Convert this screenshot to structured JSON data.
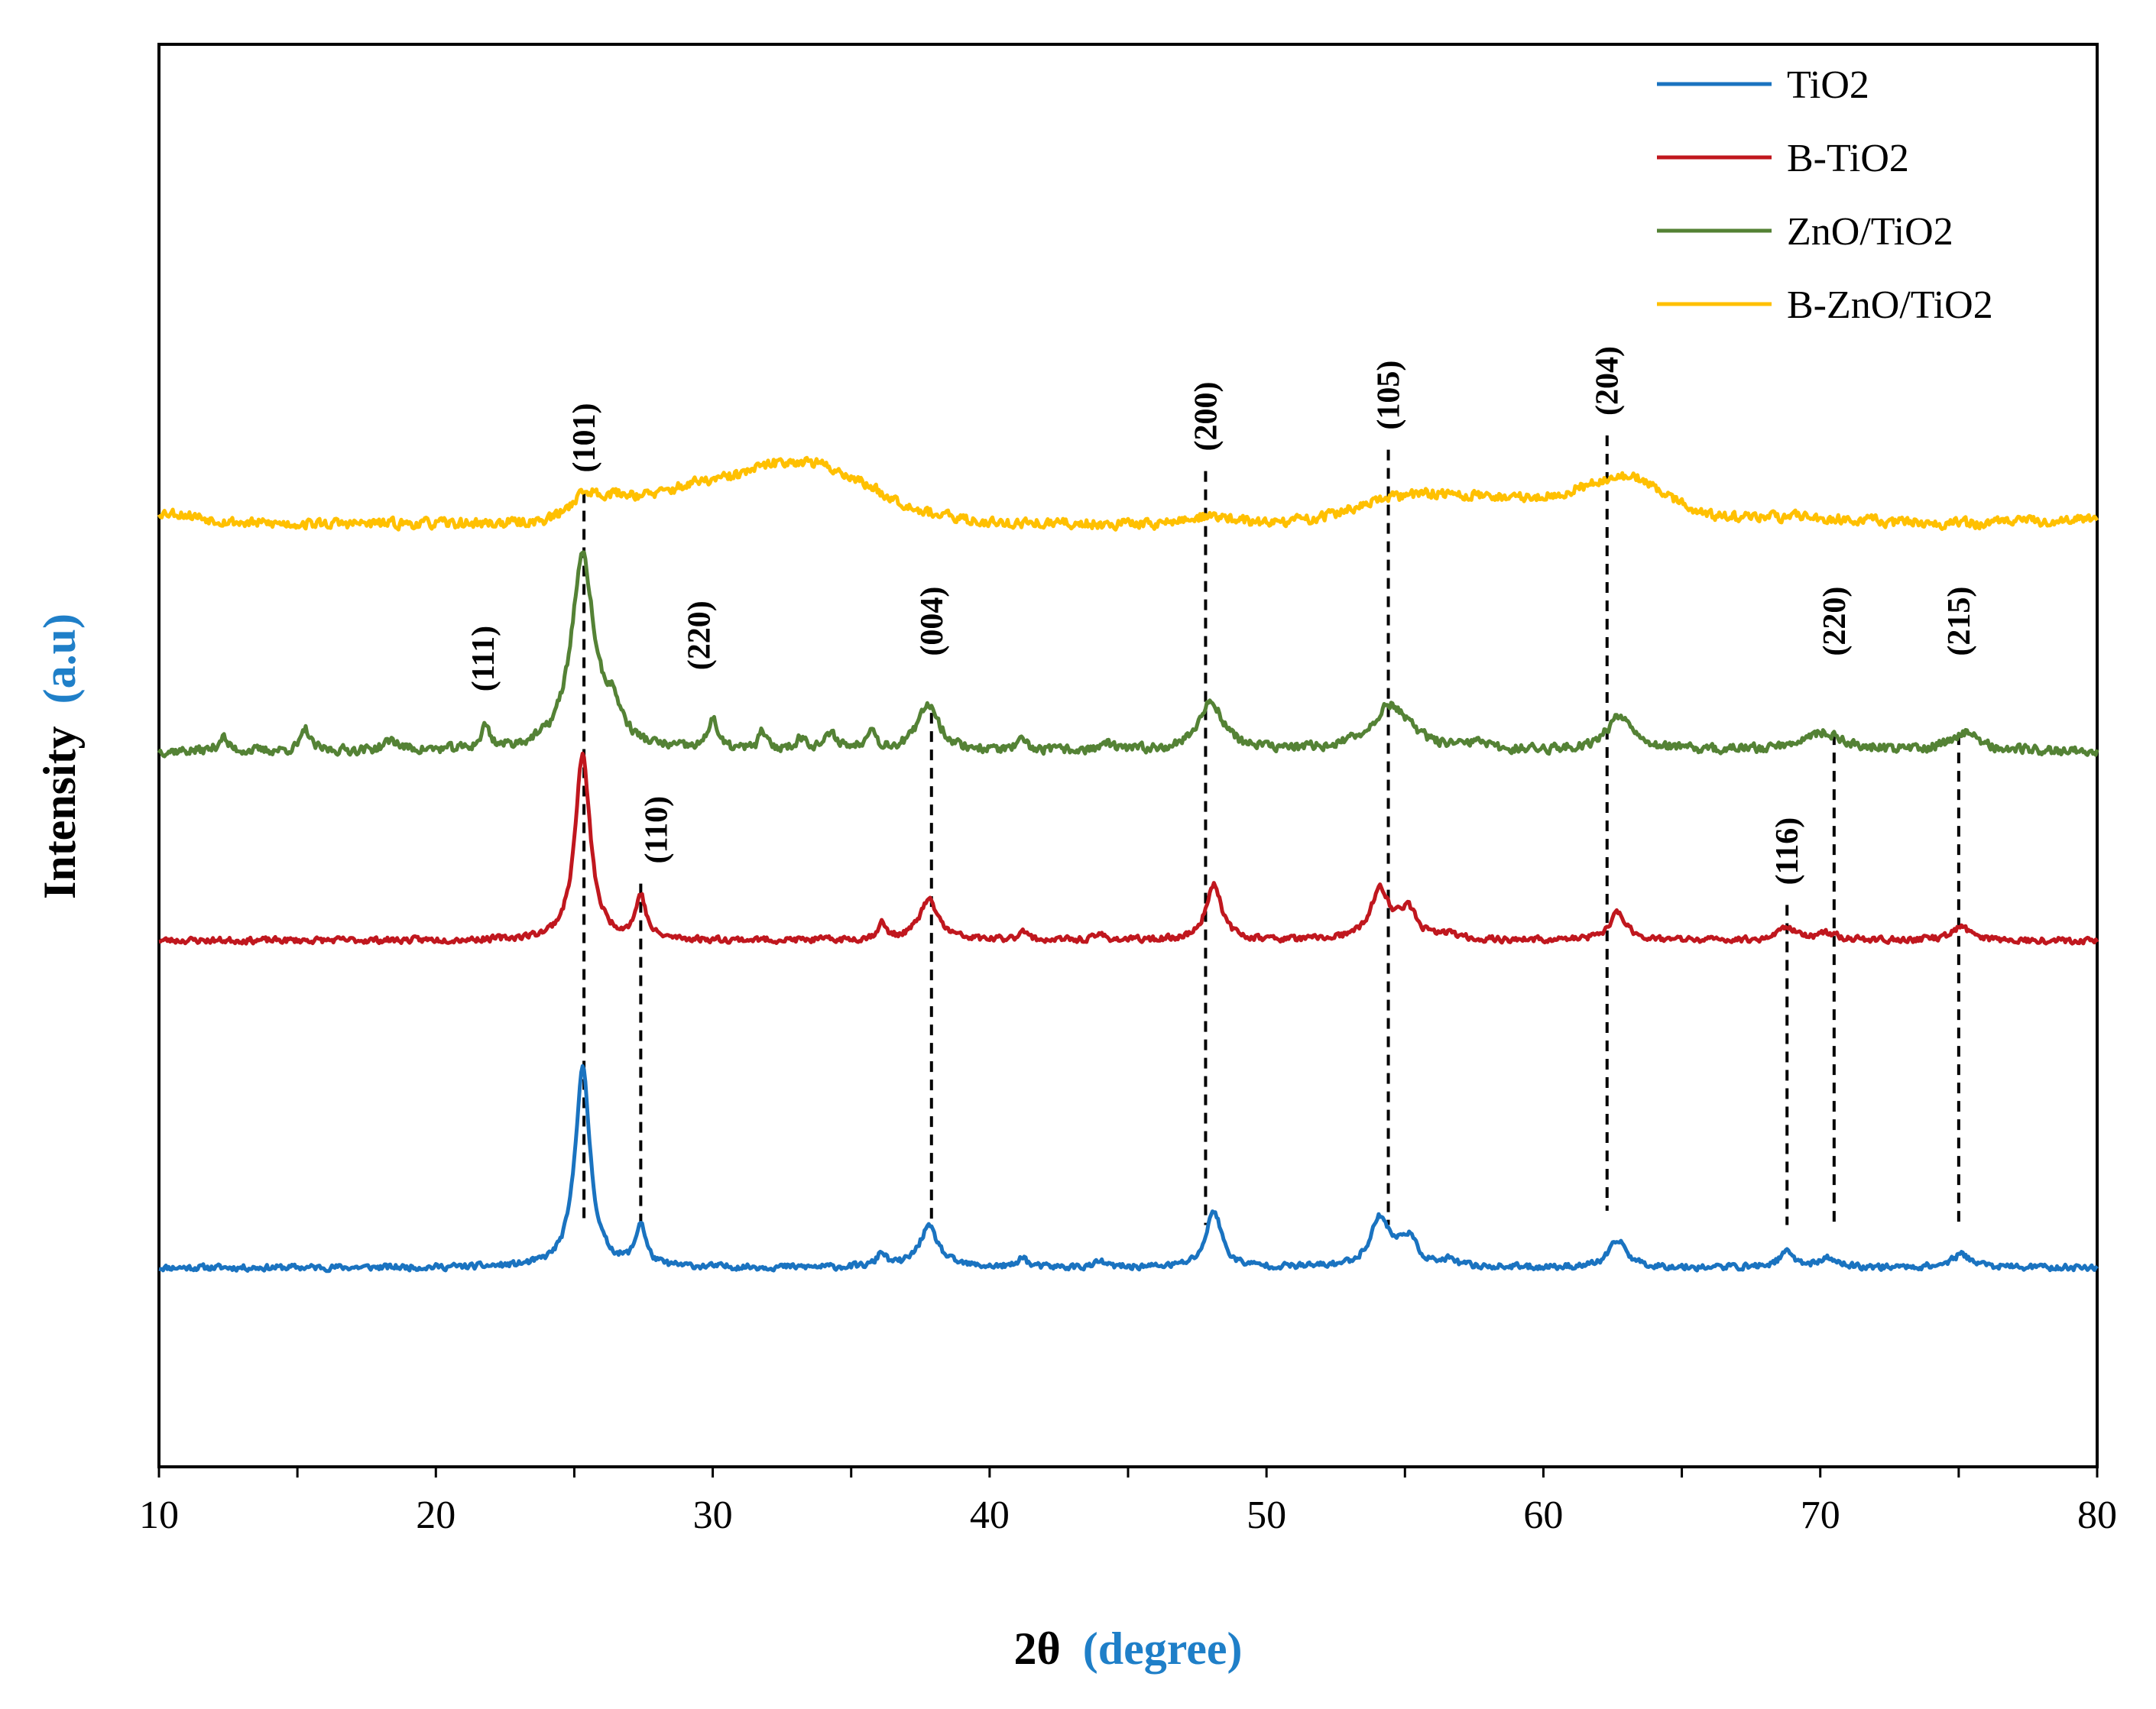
{
  "chart_data": {
    "type": "line",
    "xlabel_main": "2θ",
    "xlabel_unit": "(degree)",
    "ylabel_main": "Intensity",
    "ylabel_unit": "(a.u)",
    "xlim": [
      10,
      80
    ],
    "ylim": [
      0,
      100
    ],
    "xticks": [
      10,
      20,
      30,
      40,
      50,
      60,
      70,
      80
    ],
    "xtick_labels": [
      "10",
      "20",
      "30",
      "40",
      "50",
      "60",
      "70",
      "80"
    ],
    "label_color": "#1f7fc8",
    "legend_position": "top-right",
    "series": [
      {
        "name": "TiO2",
        "color": "#1a73c0",
        "baseline": 14,
        "noise": 0.3,
        "seed": 11,
        "bumps": [],
        "peaks": [
          {
            "x": 25.3,
            "h": 14.0,
            "w": 0.33
          },
          {
            "x": 27.4,
            "h": 2.9,
            "w": 0.22
          },
          {
            "x": 36.1,
            "h": 1.0,
            "w": 0.18
          },
          {
            "x": 37.8,
            "h": 2.8,
            "w": 0.42
          },
          {
            "x": 41.2,
            "h": 0.8,
            "w": 0.15
          },
          {
            "x": 44.0,
            "h": 0.4,
            "w": 0.2
          },
          {
            "x": 48.1,
            "h": 4.0,
            "w": 0.33
          },
          {
            "x": 54.1,
            "h": 3.4,
            "w": 0.42
          },
          {
            "x": 55.1,
            "h": 2.0,
            "w": 0.4
          },
          {
            "x": 56.6,
            "h": 0.4,
            "w": 0.3
          },
          {
            "x": 62.7,
            "h": 1.9,
            "w": 0.38
          },
          {
            "x": 68.8,
            "h": 1.0,
            "w": 0.35
          },
          {
            "x": 70.3,
            "h": 0.6,
            "w": 0.4
          },
          {
            "x": 75.1,
            "h": 0.9,
            "w": 0.45
          }
        ]
      },
      {
        "name": "B-TiO2",
        "color": "#c0171e",
        "baseline": 37,
        "noise": 0.3,
        "seed": 23,
        "bumps": [],
        "peaks": [
          {
            "x": 25.3,
            "h": 13.0,
            "w": 0.33
          },
          {
            "x": 27.4,
            "h": 3.0,
            "w": 0.22
          },
          {
            "x": 36.1,
            "h": 1.1,
            "w": 0.18
          },
          {
            "x": 37.8,
            "h": 2.8,
            "w": 0.42
          },
          {
            "x": 41.2,
            "h": 0.8,
            "w": 0.15
          },
          {
            "x": 44.0,
            "h": 0.4,
            "w": 0.2
          },
          {
            "x": 48.1,
            "h": 4.0,
            "w": 0.33
          },
          {
            "x": 54.1,
            "h": 3.4,
            "w": 0.42
          },
          {
            "x": 55.1,
            "h": 2.0,
            "w": 0.4
          },
          {
            "x": 56.6,
            "h": 0.4,
            "w": 0.3
          },
          {
            "x": 62.7,
            "h": 1.9,
            "w": 0.38
          },
          {
            "x": 68.8,
            "h": 1.0,
            "w": 0.35
          },
          {
            "x": 70.3,
            "h": 0.5,
            "w": 0.4
          },
          {
            "x": 75.1,
            "h": 0.9,
            "w": 0.45
          }
        ]
      },
      {
        "name": "ZnO/TiO2",
        "color": "#548235",
        "baseline": 50.3,
        "noise": 0.45,
        "seed": 37,
        "bumps": [],
        "peaks": [
          {
            "x": 12.3,
            "h": 1.0,
            "w": 0.18
          },
          {
            "x": 15.3,
            "h": 1.5,
            "w": 0.18
          },
          {
            "x": 18.4,
            "h": 0.7,
            "w": 0.3
          },
          {
            "x": 21.8,
            "h": 1.6,
            "w": 0.18
          },
          {
            "x": 25.3,
            "h": 13.5,
            "w": 0.5
          },
          {
            "x": 26.4,
            "h": 2.2,
            "w": 0.4
          },
          {
            "x": 30.0,
            "h": 2.3,
            "w": 0.18
          },
          {
            "x": 31.8,
            "h": 1.3,
            "w": 0.15
          },
          {
            "x": 33.2,
            "h": 0.8,
            "w": 0.25
          },
          {
            "x": 34.3,
            "h": 1.0,
            "w": 0.3
          },
          {
            "x": 35.7,
            "h": 1.5,
            "w": 0.2
          },
          {
            "x": 37.8,
            "h": 3.3,
            "w": 0.45
          },
          {
            "x": 41.2,
            "h": 0.6,
            "w": 0.2
          },
          {
            "x": 44.2,
            "h": 0.5,
            "w": 0.2
          },
          {
            "x": 48.0,
            "h": 3.4,
            "w": 0.55
          },
          {
            "x": 54.5,
            "h": 3.2,
            "w": 0.85
          },
          {
            "x": 57.6,
            "h": 0.5,
            "w": 0.3
          },
          {
            "x": 62.8,
            "h": 2.5,
            "w": 0.6
          },
          {
            "x": 70.0,
            "h": 1.3,
            "w": 0.9
          },
          {
            "x": 75.2,
            "h": 1.3,
            "w": 0.6
          }
        ]
      },
      {
        "name": "B-ZnO/TiO2",
        "color": "#ffc000",
        "baseline": 66.3,
        "noise": 0.5,
        "seed": 53,
        "bumps": [
          {
            "x": 10.0,
            "h": 0.8,
            "w": 2.0
          },
          {
            "x": 33.0,
            "h": 4.4,
            "w": 3.7
          },
          {
            "x": 29.0,
            "h": 1.2,
            "w": 1.5
          },
          {
            "x": 26.5,
            "h": 1.6,
            "w": 1.5
          },
          {
            "x": 48.0,
            "h": 0.5,
            "w": 1.2
          },
          {
            "x": 55.5,
            "h": 2.0,
            "w": 3.0
          },
          {
            "x": 59.5,
            "h": 1.3,
            "w": 2.5
          },
          {
            "x": 63.0,
            "h": 3.1,
            "w": 2.2
          },
          {
            "x": 69.0,
            "h": 0.5,
            "w": 3.0
          },
          {
            "x": 80.0,
            "h": 0.3,
            "w": 3.0
          }
        ],
        "peaks": [
          {
            "x": 25.3,
            "h": 1.3,
            "w": 0.6
          }
        ]
      }
    ],
    "annotations": [
      {
        "label": "(101)",
        "x": 25.35,
        "y_top": 68.5,
        "y_bottom": 17.0,
        "label_offset": 0
      },
      {
        "label": "(110)",
        "x": 27.4,
        "y_top": 41.0,
        "y_bottom": 17.0,
        "label_offset": 20
      },
      {
        "label": "(111)",
        "x": 21.7,
        "y_top": null,
        "y_bottom": null,
        "label_y": 54.5,
        "label_offset": 0
      },
      {
        "label": "(220)",
        "x": 29.5,
        "y_top": null,
        "y_bottom": null,
        "label_y": 56.0,
        "label_offset": 0
      },
      {
        "label": "(004)",
        "x": 37.9,
        "y_top": 53.0,
        "y_bottom": 17.0,
        "label_y": 57.0,
        "label_offset": 0
      },
      {
        "label": "(200)",
        "x": 47.8,
        "y_top": 70.0,
        "y_bottom": 17.0,
        "label_offset": 0
      },
      {
        "label": "(105)",
        "x": 54.4,
        "y_top": 71.5,
        "y_bottom": 17.0,
        "label_offset": 0
      },
      {
        "label": "(204)",
        "x": 62.3,
        "y_top": 72.5,
        "y_bottom": 18.0,
        "label_offset": 0
      },
      {
        "label": "(116)",
        "x": 68.8,
        "y_top": 39.5,
        "y_bottom": 17.0,
        "label_offset": 0
      },
      {
        "label": "(220)",
        "x": 70.5,
        "y_top": 51.5,
        "y_bottom": 17.0,
        "label_y": 57.0,
        "label_offset": 0
      },
      {
        "label": "(215)",
        "x": 75.0,
        "y_top": 51.5,
        "y_bottom": 17.0,
        "label_y": 57.0,
        "label_offset": 0
      }
    ]
  }
}
